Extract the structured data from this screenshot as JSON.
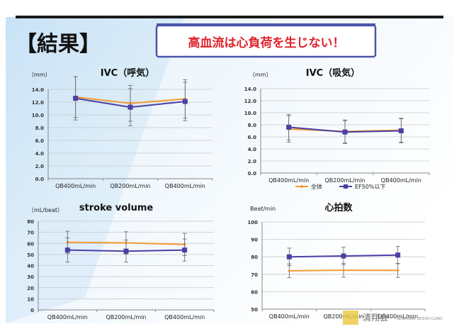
{
  "slide": {
    "title": "【結果】",
    "callout": "高血流は心負荷を生じない！",
    "footer_logo": "清翔会",
    "footer_subtext": "SEISHOKAI SEISHO CLINIC"
  },
  "colors": {
    "orange": "#f39a35",
    "purple": "#4b3fa5",
    "grid": "#c8c8c8",
    "axis": "#888888",
    "callout_red": "#e0202a",
    "callout_border": "#4a55a8"
  },
  "chart_data": [
    {
      "id": "ivc-expiration",
      "type": "line",
      "title": "IVC（呼気）",
      "ylabel": "（mm）",
      "categories": [
        "QB400mL/min",
        "QB200mL/min",
        "QB400mL/min"
      ],
      "ylim": [
        0,
        14
      ],
      "yticks": [
        "0.0",
        "2.0",
        "4.0",
        "6.0",
        "8.0",
        "10.0",
        "12.0",
        "14.0"
      ],
      "series": [
        {
          "color": "orange",
          "values": [
            12.8,
            11.8,
            12.5
          ],
          "err": [
            3.2,
            2.8,
            3.0
          ]
        },
        {
          "color": "purple",
          "values": [
            12.6,
            11.2,
            12.1
          ],
          "err": [
            3.4,
            2.9,
            3.0
          ]
        }
      ],
      "legend": []
    },
    {
      "id": "ivc-inspiration",
      "type": "line",
      "title": "IVC（吸気）",
      "ylabel": "（mm）",
      "categories": [
        "QB400mL/min",
        "QB200mL/min",
        "QB400mL/min"
      ],
      "ylim": [
        0,
        14
      ],
      "yticks": [
        "0.0",
        "2.0",
        "4.0",
        "6.0",
        "8.0",
        "10.0",
        "12.0",
        "14.0"
      ],
      "series": [
        {
          "name": "全体",
          "color": "orange",
          "values": [
            7.3,
            6.9,
            7.1
          ],
          "err": [
            2.2,
            1.9,
            2.0
          ]
        },
        {
          "name": "EF50%以下",
          "color": "purple",
          "values": [
            7.6,
            6.8,
            7.0
          ],
          "err": [
            2.1,
            1.9,
            2.0
          ]
        }
      ],
      "legend": [
        "全体",
        "EF50%以下"
      ]
    },
    {
      "id": "stroke-volume",
      "type": "line",
      "title": "stroke volume",
      "ylabel": "（mL/beat）",
      "categories": [
        "QB400mL/min",
        "QB200mL/min",
        "QB400mL/min"
      ],
      "ylim": [
        0,
        80
      ],
      "yticks": [
        "0",
        "10",
        "20",
        "30",
        "40",
        "50",
        "60",
        "70",
        "80"
      ],
      "series": [
        {
          "color": "orange",
          "values": [
            61,
            60.5,
            59
          ],
          "err": [
            10,
            10,
            10
          ]
        },
        {
          "color": "purple",
          "values": [
            54,
            53,
            54
          ],
          "err": [
            11,
            10,
            10
          ]
        }
      ],
      "legend": []
    },
    {
      "id": "heart-rate",
      "type": "line",
      "title": "心拍数",
      "ylabel": "Beat/min",
      "categories": [
        "QB400mL/min",
        "QB200mL/min",
        "QB400mL/min"
      ],
      "ylim": [
        50,
        100
      ],
      "yticks": [
        "50",
        "60",
        "70",
        "80",
        "90",
        "100"
      ],
      "series": [
        {
          "color": "orange",
          "values": [
            72,
            72.3,
            72.2
          ],
          "err": [
            4,
            4,
            4
          ]
        },
        {
          "color": "purple",
          "values": [
            80,
            80.5,
            81
          ],
          "err": [
            5,
            5,
            5
          ]
        }
      ],
      "legend": []
    }
  ]
}
